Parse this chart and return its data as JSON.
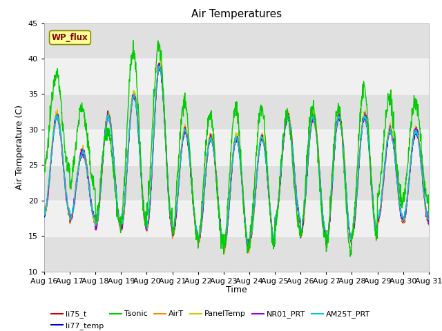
{
  "title": "Air Temperatures",
  "xlabel": "Time",
  "ylabel": "Air Temperature (C)",
  "ylim": [
    10,
    45
  ],
  "yticks": [
    10,
    15,
    20,
    25,
    30,
    35,
    40,
    45
  ],
  "xlim": [
    0,
    15
  ],
  "x_tick_labels": [
    "Aug 16",
    "Aug 17",
    "Aug 18",
    "Aug 19",
    "Aug 20",
    "Aug 21",
    "Aug 22",
    "Aug 23",
    "Aug 24",
    "Aug 25",
    "Aug 26",
    "Aug 27",
    "Aug 28",
    "Aug 29",
    "Aug 30",
    "Aug 31"
  ],
  "plot_bg_color": "#f0f0f0",
  "fig_bg_color": "#ffffff",
  "band_light": "#f0f0f0",
  "band_dark": "#e0e0e0",
  "legend_entries": [
    "li75_t",
    "li77_temp",
    "Tsonic",
    "AirT",
    "PanelTemp",
    "NR01_PRT",
    "AM25T_PRT"
  ],
  "legend_colors": [
    "#cc0000",
    "#0000cc",
    "#00cc00",
    "#ff8800",
    "#cccc00",
    "#9900cc",
    "#00cccc"
  ],
  "wp_flux_label": "WP_flux",
  "wp_flux_color": "#880000",
  "wp_flux_bg": "#ffff99",
  "wp_flux_border": "#888800",
  "title_fontsize": 11,
  "axis_label_fontsize": 9,
  "tick_fontsize": 8,
  "legend_fontsize": 8,
  "tsonic_peaks": [
    38,
    33,
    30,
    41,
    42,
    34,
    32,
    33,
    33,
    32,
    33,
    33,
    36,
    34,
    34,
    30
  ],
  "tsonic_mins": [
    24,
    22,
    17,
    17,
    18,
    15,
    14,
    13,
    14,
    16,
    15,
    13,
    15,
    20,
    20,
    18
  ],
  "other_peaks": [
    32,
    27,
    32,
    35,
    39,
    30,
    29,
    29,
    29,
    32,
    32,
    32,
    32,
    30,
    30,
    30
  ],
  "other_mins": [
    18,
    17,
    16,
    16,
    16,
    15,
    14,
    13,
    14,
    17,
    15,
    14,
    15,
    17,
    17,
    17
  ]
}
